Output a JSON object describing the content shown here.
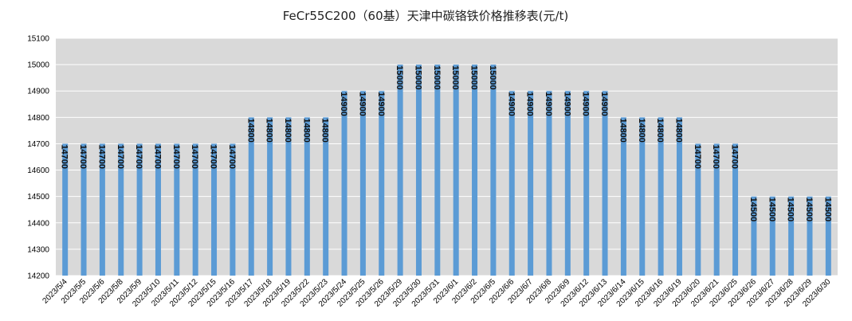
{
  "chart_data": {
    "type": "bar",
    "title": "FeCr55C200（60基）天津中碳铬铁价格推移表(元/t)",
    "categories": [
      "2023/5/4",
      "2023/5/5",
      "2023/5/6",
      "2023/5/8",
      "2023/5/9",
      "2023/5/10",
      "2023/5/11",
      "2023/5/12",
      "2023/5/15",
      "2023/5/16",
      "2023/5/17",
      "2023/5/18",
      "2023/5/19",
      "2023/5/22",
      "2023/5/23",
      "2023/5/24",
      "2023/5/25",
      "2023/5/26",
      "2023/5/29",
      "2023/5/30",
      "2023/5/31",
      "2023/6/1",
      "2023/6/2",
      "2023/6/5",
      "2023/6/6",
      "2023/6/7",
      "2023/6/8",
      "2023/6/9",
      "2023/6/12",
      "2023/6/13",
      "2023/6/14",
      "2023/6/15",
      "2023/6/16",
      "2023/6/19",
      "2023/6/20",
      "2023/6/21",
      "2023/6/25",
      "2023/6/26",
      "2023/6/27",
      "2023/6/28",
      "2023/6/29",
      "2023/6/30"
    ],
    "values": [
      14700,
      14700,
      14700,
      14700,
      14700,
      14700,
      14700,
      14700,
      14700,
      14700,
      14800,
      14800,
      14800,
      14800,
      14800,
      14900,
      14900,
      14900,
      15000,
      15000,
      15000,
      15000,
      15000,
      15000,
      14900,
      14900,
      14900,
      14900,
      14900,
      14900,
      14800,
      14800,
      14800,
      14800,
      14700,
      14700,
      14700,
      14500,
      14500,
      14500,
      14500,
      14500
    ],
    "yticks": [
      "14200",
      "14300",
      "14400",
      "14500",
      "14600",
      "14700",
      "14800",
      "14900",
      "15000",
      "15100"
    ],
    "ylim": [
      14200,
      15100
    ],
    "xlabel": "",
    "ylabel": "",
    "grid": true,
    "legend": "none",
    "colors": {
      "bar": "#5b9bd5",
      "plot_bg": "#d9d9d9",
      "grid": "#ffffff"
    }
  }
}
